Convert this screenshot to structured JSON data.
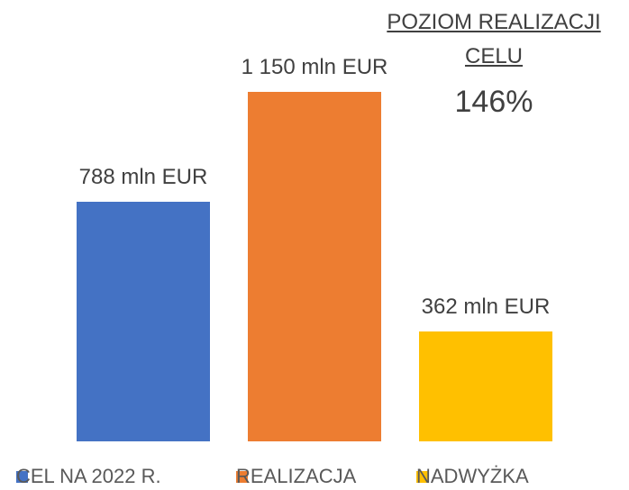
{
  "chart_data": {
    "type": "bar",
    "series": [
      {
        "name": "CEL NA 2022 R.",
        "color": "#4472c4",
        "values": [
          788
        ],
        "value_labels": [
          "788 mln EUR"
        ]
      },
      {
        "name": "REALIZACJA",
        "color": "#ed7d31",
        "values": [
          1150
        ],
        "value_labels": [
          "1 150 mln EUR"
        ]
      },
      {
        "name": "NADWYŻKA",
        "color": "#ffc000",
        "values": [
          362
        ],
        "value_labels": [
          "362 mln EUR"
        ]
      }
    ],
    "annotation": {
      "title": "POZIOM REALIZACJI CELU",
      "value": 146,
      "label": "146%"
    }
  }
}
